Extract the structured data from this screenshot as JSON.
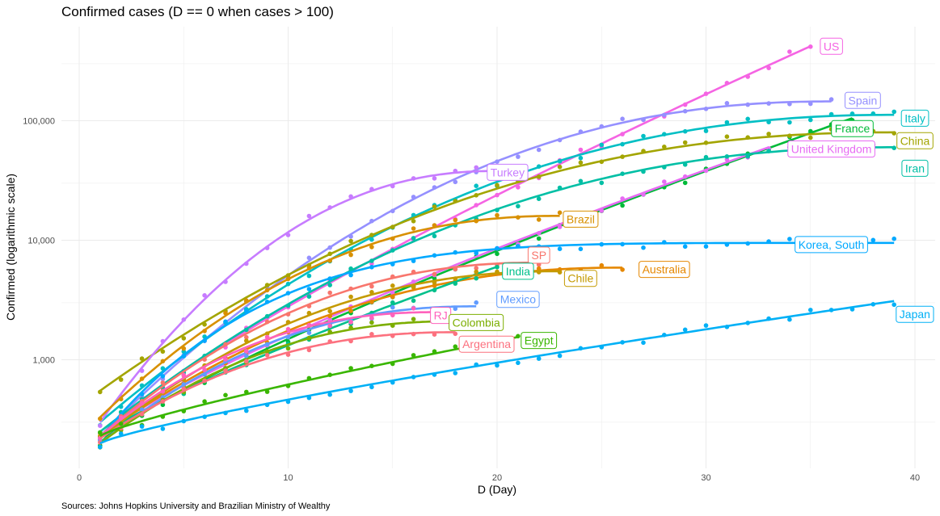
{
  "chart_data": {
    "type": "line",
    "title": "Confirmed cases (D == 0 when cases > 100)",
    "xlabel": "D (Day)",
    "ylabel": "Confirmed (logarithmic scale)",
    "caption": "Sources: Johns Hopkins University and Brazilian Ministry of Wealthy",
    "xlim": [
      0,
      40
    ],
    "ylim": [
      150,
      600000
    ],
    "y_scale": "log10",
    "x_ticks": [
      {
        "v": 0,
        "label": "0"
      },
      {
        "v": 10,
        "label": "10"
      },
      {
        "v": 20,
        "label": "20"
      },
      {
        "v": 30,
        "label": "30"
      },
      {
        "v": 40,
        "label": "40"
      }
    ],
    "y_ticks": [
      {
        "v": 1000,
        "label": "1,000"
      },
      {
        "v": 10000,
        "label": "10,000"
      },
      {
        "v": 100000,
        "label": "100,000"
      }
    ],
    "grid": true,
    "legend": "none (direct labels)",
    "series": [
      {
        "name": "US",
        "color": "#f564e3",
        "days": 35,
        "start": 220,
        "end": 420000,
        "mode": "exp",
        "label_x": 36,
        "label_y": 420000
      },
      {
        "name": "Spain",
        "color": "#9590ff",
        "days": 36,
        "start": 230,
        "end": 145000,
        "mode": "sat",
        "label_x": 37.5,
        "label_y": 148000
      },
      {
        "name": "Italy",
        "color": "#00bfc4",
        "days": 39,
        "start": 300,
        "end": 112000,
        "mode": "sat",
        "label_x": 40,
        "label_y": 105000
      },
      {
        "name": "France",
        "color": "#00ba38",
        "days": 37,
        "start": 200,
        "end": 105000,
        "mode": "exp",
        "label_x": 37,
        "label_y": 86000
      },
      {
        "name": "China",
        "color": "#a3a500",
        "days": 39,
        "start": 550,
        "end": 80000,
        "mode": "sat",
        "label_x": 40,
        "label_y": 68000
      },
      {
        "name": "United Kingdom",
        "color": "#e76bf3",
        "days": 33,
        "start": 220,
        "end": 60000,
        "mode": "exp",
        "label_x": 36,
        "label_y": 58000
      },
      {
        "name": "Iran",
        "color": "#00bfa5",
        "days": 39,
        "start": 250,
        "end": 60000,
        "mode": "sat",
        "label_x": 40,
        "label_y": 40000
      },
      {
        "name": "Turkey",
        "color": "#c77cff",
        "days": 20,
        "start": 300,
        "end": 38000,
        "mode": "sat",
        "label_x": 20.5,
        "label_y": 37000
      },
      {
        "name": "Brazil",
        "color": "#d89000",
        "days": 23,
        "start": 330,
        "end": 16000,
        "mode": "sat",
        "label_x": 24,
        "label_y": 15000
      },
      {
        "name": "Korea, South",
        "color": "#00a9ff",
        "days": 39,
        "start": 220,
        "end": 9500,
        "mode": "plat",
        "label_x": 36,
        "label_y": 9200
      },
      {
        "name": "SP",
        "color": "#f8766d",
        "days": 22,
        "start": 230,
        "end": 6500,
        "mode": "sat",
        "label_x": 22,
        "label_y": 7500
      },
      {
        "name": "Australia",
        "color": "#e58700",
        "days": 26,
        "start": 230,
        "end": 5900,
        "mode": "sat",
        "label_x": 28,
        "label_y": 5700
      },
      {
        "name": "India",
        "color": "#00c08b",
        "days": 20,
        "start": 220,
        "end": 6000,
        "mode": "exp",
        "label_x": 21,
        "label_y": 5500
      },
      {
        "name": "Chile",
        "color": "#c49a00",
        "days": 23,
        "start": 220,
        "end": 5500,
        "mode": "sat",
        "label_x": 24,
        "label_y": 4800
      },
      {
        "name": "Mexico",
        "color": "#619cff",
        "days": 19,
        "start": 200,
        "end": 2800,
        "mode": "sat",
        "label_x": 21,
        "label_y": 3200
      },
      {
        "name": "RJ",
        "color": "#ff62bc",
        "days": 17,
        "start": 230,
        "end": 2500,
        "mode": "sat",
        "label_x": 17.3,
        "label_y": 2350
      },
      {
        "name": "Colombia",
        "color": "#7cae00",
        "days": 18,
        "start": 200,
        "end": 2100,
        "mode": "sat",
        "label_x": 19,
        "label_y": 2050
      },
      {
        "name": "Argentina",
        "color": "#fc717f",
        "days": 18,
        "start": 220,
        "end": 1700,
        "mode": "sat",
        "label_x": 19.5,
        "label_y": 1350
      },
      {
        "name": "Egypt",
        "color": "#39b600",
        "days": 21,
        "start": 230,
        "end": 1550,
        "mode": "exp",
        "label_x": 22,
        "label_y": 1450
      },
      {
        "name": "Japan",
        "color": "#00b0f6",
        "days": 39,
        "start": 200,
        "end": 3100,
        "mode": "exp",
        "label_x": 40,
        "label_y": 2400
      }
    ]
  }
}
